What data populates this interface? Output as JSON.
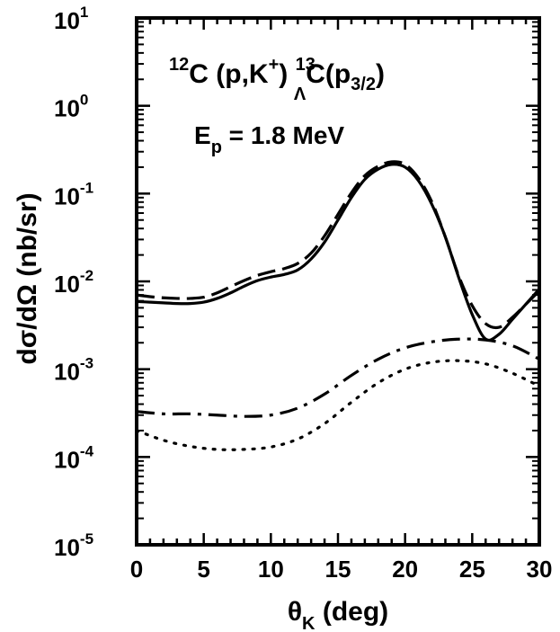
{
  "chart_data": {
    "type": "line",
    "xlabel": {
      "symbol": "θ",
      "sub": "K",
      "rest": " (deg)"
    },
    "ylabel": "dσ/dΩ (nb/sr)",
    "xlim": [
      0,
      30
    ],
    "ylim_log10": [
      -5,
      1
    ],
    "x_ticks": [
      "0",
      "5",
      "10",
      "15",
      "20",
      "25",
      "30"
    ],
    "y_ticks": [
      {
        "base": "10",
        "exp": "-5"
      },
      {
        "base": "10",
        "exp": "-4"
      },
      {
        "base": "10",
        "exp": "-3"
      },
      {
        "base": "10",
        "exp": "-2"
      },
      {
        "base": "10",
        "exp": "-1"
      },
      {
        "base": "10",
        "exp": "0"
      },
      {
        "base": "10",
        "exp": "1"
      }
    ],
    "annotations": {
      "reaction": {
        "mass1": "12",
        "t1": "C (p,K",
        "plus": "+",
        "t2": ") ",
        "mass2": "13",
        "hyper": "Λ",
        "t3": "C(p",
        "sub": "3/2",
        "t4": ")"
      },
      "energy": {
        "e": "E",
        "p": "p",
        "rest": " = 1.8 MeV"
      }
    },
    "series": [
      {
        "name": "solid",
        "style": "solid",
        "x": [
          0,
          1,
          2,
          3,
          4,
          5,
          6,
          7,
          8,
          9,
          10,
          11,
          12,
          13,
          14,
          15,
          16,
          17,
          18,
          19,
          20,
          21,
          22,
          23,
          24,
          25,
          26,
          27,
          28,
          29,
          30
        ],
        "y": [
          0.0059,
          0.0058,
          0.0057,
          0.0056,
          0.0056,
          0.0058,
          0.0064,
          0.0074,
          0.0088,
          0.0102,
          0.0112,
          0.012,
          0.0135,
          0.018,
          0.028,
          0.05,
          0.09,
          0.145,
          0.19,
          0.215,
          0.2,
          0.14,
          0.075,
          0.032,
          0.011,
          0.0042,
          0.0022,
          0.0025,
          0.0037,
          0.0055,
          0.0082
        ]
      },
      {
        "name": "dashed",
        "style": "dashed",
        "x": [
          0,
          1,
          2,
          3,
          4,
          5,
          6,
          7,
          8,
          9,
          10,
          11,
          12,
          13,
          14,
          15,
          16,
          17,
          18,
          19,
          20,
          21,
          22,
          23,
          24,
          25,
          26,
          27,
          28,
          29,
          30
        ],
        "y": [
          0.007,
          0.0067,
          0.0065,
          0.0064,
          0.0064,
          0.0066,
          0.0074,
          0.0087,
          0.0102,
          0.0117,
          0.0129,
          0.014,
          0.016,
          0.021,
          0.033,
          0.058,
          0.102,
          0.16,
          0.205,
          0.23,
          0.215,
          0.15,
          0.08,
          0.032,
          0.0115,
          0.0053,
          0.0033,
          0.003,
          0.0039,
          0.0055,
          0.0078
        ]
      },
      {
        "name": "dash-dot",
        "style": "dashdot",
        "x": [
          0,
          2,
          4,
          6,
          8,
          10,
          12,
          14,
          16,
          18,
          20,
          22,
          24,
          26,
          28,
          30
        ],
        "y": [
          0.00033,
          0.00031,
          0.00031,
          0.0003,
          0.00029,
          0.0003,
          0.00036,
          0.00052,
          0.00085,
          0.0013,
          0.00175,
          0.00205,
          0.0022,
          0.00215,
          0.00185,
          0.0013
        ]
      },
      {
        "name": "dotted",
        "style": "dotted",
        "x": [
          0,
          2,
          4,
          6,
          8,
          10,
          12,
          14,
          16,
          18,
          20,
          22,
          24,
          26,
          28,
          30
        ],
        "y": [
          0.0002,
          0.000155,
          0.000132,
          0.000122,
          0.000122,
          0.00013,
          0.00016,
          0.00024,
          0.00042,
          0.0007,
          0.001,
          0.0012,
          0.00125,
          0.00115,
          0.0009,
          0.00064
        ]
      }
    ]
  }
}
